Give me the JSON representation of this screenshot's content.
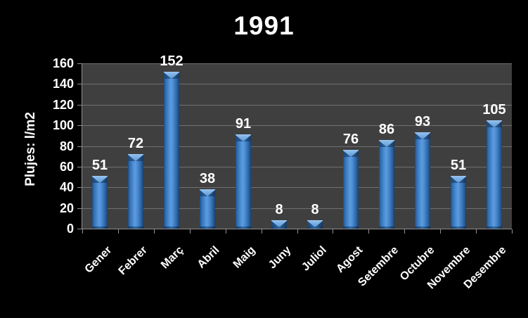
{
  "chart_data": {
    "type": "bar",
    "title": "1991",
    "ylabel": "Plujes: l/m2",
    "xlabel": "",
    "categories": [
      "Gener",
      "Febrer",
      "Març",
      "Abril",
      "Maig",
      "Juny",
      "Juliol",
      "Agost",
      "Setembre",
      "Octubre",
      "Novembre",
      "Desembre"
    ],
    "values": [
      51,
      72,
      152,
      38,
      91,
      8,
      8,
      76,
      86,
      93,
      51,
      105
    ],
    "ylim": [
      0,
      160
    ],
    "yticks": [
      0,
      20,
      40,
      60,
      80,
      100,
      120,
      140,
      160
    ],
    "grid": "horizontal",
    "legend_position": "none",
    "data_labels": true,
    "x_label_rotation_deg": -45
  },
  "colors": {
    "background": "#000000",
    "plot_background": "#3f3f3f",
    "gridline": "#6f6f6f",
    "axis_line": "#8f8f8f",
    "text": "#ffffff",
    "bar_edge_dark": "#1d4a7d",
    "bar_mid": "#4f8fd4",
    "bar_highlight": "#5d9ce2",
    "bar_cap_light": "#8fbdee"
  }
}
